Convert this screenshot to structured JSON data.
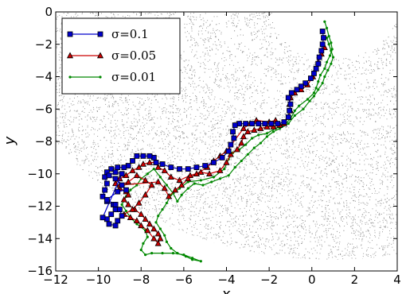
{
  "chart_data": {
    "type": "line",
    "title": "",
    "xlabel": "x",
    "ylabel": "y",
    "xlim": [
      -12,
      4
    ],
    "ylim": [
      -16,
      0
    ],
    "xticks": [
      -12,
      -10,
      -8,
      -6,
      -4,
      -2,
      0,
      2,
      4
    ],
    "yticks": [
      0,
      -2,
      -4,
      -6,
      -8,
      -10,
      -12,
      -14,
      -16
    ],
    "xtick_labels": [
      "−12",
      "−10",
      "−8",
      "−6",
      "−4",
      "−2",
      "0",
      "2",
      "4"
    ],
    "ytick_labels": [
      "0",
      "−2",
      "−4",
      "−6",
      "−8",
      "−10",
      "−12",
      "−14",
      "−16"
    ],
    "grid": false,
    "legend_position": "top-left",
    "background": {
      "description": "dense gray dotted region of a phase-space scatter with nested white arcs centered near (1, 0)",
      "dot_color": "#9a9a9a",
      "arc_center": [
        1,
        0
      ],
      "arc_radii": [
        2.9,
        4.2,
        5.1,
        7.1,
        15.3
      ]
    },
    "series": [
      {
        "name": "σ=0.1",
        "color": "#0000cc",
        "marker": "square",
        "points": [
          [
            0.5,
            -1.2
          ],
          [
            0.55,
            -1.6
          ],
          [
            0.5,
            -2.0
          ],
          [
            0.45,
            -2.4
          ],
          [
            0.35,
            -2.8
          ],
          [
            0.3,
            -3.2
          ],
          [
            0.2,
            -3.5
          ],
          [
            0.1,
            -3.8
          ],
          [
            -0.05,
            -4.1
          ],
          [
            -0.3,
            -4.4
          ],
          [
            -0.5,
            -4.6
          ],
          [
            -0.7,
            -4.8
          ],
          [
            -0.95,
            -5.0
          ],
          [
            -1.1,
            -5.3
          ],
          [
            -1.0,
            -5.7
          ],
          [
            -1.05,
            -6.1
          ],
          [
            -1.1,
            -6.5
          ],
          [
            -1.3,
            -6.8
          ],
          [
            -1.6,
            -6.9
          ],
          [
            -1.9,
            -6.9
          ],
          [
            -2.2,
            -6.9
          ],
          [
            -2.5,
            -6.9
          ],
          [
            -2.8,
            -6.9
          ],
          [
            -3.1,
            -6.9
          ],
          [
            -3.4,
            -6.9
          ],
          [
            -3.6,
            -7.0
          ],
          [
            -3.7,
            -7.4
          ],
          [
            -3.65,
            -7.8
          ],
          [
            -3.8,
            -8.2
          ],
          [
            -3.9,
            -8.6
          ],
          [
            -4.2,
            -9.0
          ],
          [
            -4.6,
            -9.3
          ],
          [
            -5.0,
            -9.5
          ],
          [
            -5.4,
            -9.6
          ],
          [
            -5.8,
            -9.7
          ],
          [
            -6.2,
            -9.7
          ],
          [
            -6.6,
            -9.6
          ],
          [
            -7.0,
            -9.4
          ],
          [
            -7.3,
            -9.3
          ],
          [
            -7.4,
            -9.0
          ],
          [
            -7.6,
            -8.9
          ],
          [
            -7.9,
            -8.9
          ],
          [
            -8.2,
            -8.9
          ],
          [
            -8.4,
            -9.2
          ],
          [
            -8.6,
            -9.5
          ],
          [
            -8.8,
            -9.6
          ],
          [
            -9.1,
            -9.6
          ],
          [
            -9.4,
            -9.7
          ],
          [
            -9.6,
            -9.9
          ],
          [
            -9.7,
            -10.2
          ],
          [
            -9.6,
            -10.6
          ],
          [
            -9.7,
            -11.0
          ],
          [
            -9.8,
            -11.4
          ],
          [
            -9.6,
            -11.7
          ],
          [
            -9.3,
            -11.9
          ],
          [
            -9.2,
            -12.2
          ],
          [
            -9.4,
            -12.5
          ],
          [
            -9.6,
            -12.8
          ],
          [
            -9.5,
            -13.1
          ],
          [
            -9.2,
            -13.2
          ],
          [
            -9.1,
            -12.9
          ],
          [
            -8.9,
            -12.6
          ],
          [
            -9.0,
            -12.2
          ],
          [
            -9.2,
            -11.9
          ],
          [
            -9.6,
            -11.6
          ],
          [
            -9.1,
            -11.1
          ],
          [
            -8.7,
            -11.0
          ],
          [
            -8.9,
            -10.7
          ],
          [
            -9.2,
            -10.3
          ],
          [
            -9.5,
            -10.1
          ],
          [
            -9.2,
            -9.9
          ],
          [
            -8.9,
            -10.0
          ],
          [
            -9.8,
            -12.7
          ]
        ]
      },
      {
        "name": "σ=0.05",
        "color": "#cc0000",
        "marker": "triangle",
        "points": [
          [
            0.6,
            -2.2
          ],
          [
            0.45,
            -2.6
          ],
          [
            0.3,
            -3.1
          ],
          [
            0.2,
            -3.5
          ],
          [
            0.05,
            -4.0
          ],
          [
            -0.2,
            -4.5
          ],
          [
            -0.5,
            -4.8
          ],
          [
            -0.8,
            -5.0
          ],
          [
            -1.0,
            -5.3
          ],
          [
            -1.05,
            -5.7
          ],
          [
            -1.0,
            -6.1
          ],
          [
            -1.1,
            -6.5
          ],
          [
            -1.3,
            -6.9
          ],
          [
            -1.5,
            -7.0
          ],
          [
            -1.8,
            -7.1
          ],
          [
            -2.1,
            -7.1
          ],
          [
            -2.4,
            -7.2
          ],
          [
            -2.7,
            -7.3
          ],
          [
            -3.0,
            -7.4
          ],
          [
            -3.2,
            -7.7
          ],
          [
            -3.3,
            -8.1
          ],
          [
            -3.5,
            -8.5
          ],
          [
            -3.8,
            -8.8
          ],
          [
            -4.0,
            -9.3
          ],
          [
            -4.3,
            -9.8
          ],
          [
            -4.8,
            -10.0
          ],
          [
            -5.2,
            -9.9
          ],
          [
            -5.7,
            -10.1
          ],
          [
            -6.2,
            -10.4
          ],
          [
            -6.6,
            -10.2
          ],
          [
            -6.9,
            -9.8
          ],
          [
            -7.2,
            -9.6
          ],
          [
            -7.3,
            -9.3
          ],
          [
            -7.6,
            -9.3
          ],
          [
            -7.9,
            -9.4
          ],
          [
            -8.1,
            -9.6
          ],
          [
            -8.4,
            -9.8
          ],
          [
            -8.7,
            -10.1
          ],
          [
            -9.0,
            -10.3
          ],
          [
            -9.2,
            -10.6
          ],
          [
            -9.0,
            -10.9
          ],
          [
            -8.7,
            -11.1
          ],
          [
            -8.6,
            -11.3
          ],
          [
            -8.8,
            -11.6
          ],
          [
            -8.6,
            -11.9
          ],
          [
            -8.3,
            -12.2
          ],
          [
            -8.0,
            -12.5
          ],
          [
            -7.8,
            -12.8
          ],
          [
            -7.6,
            -13.1
          ],
          [
            -7.4,
            -13.4
          ],
          [
            -7.2,
            -13.7
          ],
          [
            -7.1,
            -14.0
          ],
          [
            -7.2,
            -14.3
          ],
          [
            -7.4,
            -14.0
          ],
          [
            -7.7,
            -13.5
          ],
          [
            -8.0,
            -13.2
          ],
          [
            -8.2,
            -12.9
          ],
          [
            -8.5,
            -12.7
          ],
          [
            -8.8,
            -12.5
          ],
          [
            -8.4,
            -12.2
          ],
          [
            -8.1,
            -11.8
          ],
          [
            -7.8,
            -11.3
          ],
          [
            -7.5,
            -10.7
          ],
          [
            -7.8,
            -10.4
          ],
          [
            -8.2,
            -10.1
          ],
          [
            -8.6,
            -10.5
          ],
          [
            -9.0,
            -10.7
          ],
          [
            -7.2,
            -10.5
          ],
          [
            -6.9,
            -10.9
          ],
          [
            -6.7,
            -11.4
          ],
          [
            -6.4,
            -11.0
          ],
          [
            -6.1,
            -10.7
          ],
          [
            -5.8,
            -10.3
          ],
          [
            -5.4,
            -10.0
          ],
          [
            -4.9,
            -9.6
          ],
          [
            -4.6,
            -9.2
          ],
          [
            -4.3,
            -8.9
          ],
          [
            -4.0,
            -8.6
          ],
          [
            -3.2,
            -7.2
          ],
          [
            -2.9,
            -6.9
          ],
          [
            -2.6,
            -6.7
          ],
          [
            -2.0,
            -6.8
          ],
          [
            -1.7,
            -6.7
          ]
        ]
      },
      {
        "name": "σ=0.01",
        "color": "#008800",
        "marker": "dot",
        "points": [
          [
            0.6,
            -0.6
          ],
          [
            0.7,
            -1.0
          ],
          [
            0.8,
            -1.5
          ],
          [
            0.9,
            -1.9
          ],
          [
            0.95,
            -2.3
          ],
          [
            0.85,
            -2.7
          ],
          [
            0.7,
            -3.1
          ],
          [
            0.6,
            -3.5
          ],
          [
            0.4,
            -3.9
          ],
          [
            0.3,
            -4.3
          ],
          [
            0.2,
            -4.7
          ],
          [
            0.1,
            -5.0
          ],
          [
            -0.2,
            -5.4
          ],
          [
            -0.6,
            -5.8
          ],
          [
            -0.8,
            -6.1
          ],
          [
            -1.0,
            -6.6
          ],
          [
            -1.3,
            -7.0
          ],
          [
            -1.7,
            -7.2
          ],
          [
            -2.1,
            -7.5
          ],
          [
            -2.5,
            -7.6
          ],
          [
            -2.8,
            -7.8
          ],
          [
            -3.1,
            -8.2
          ],
          [
            -3.4,
            -8.5
          ],
          [
            -3.7,
            -8.7
          ],
          [
            -3.9,
            -9.1
          ],
          [
            -4.1,
            -9.7
          ],
          [
            -4.6,
            -10.2
          ],
          [
            -5.2,
            -10.4
          ],
          [
            -5.8,
            -10.5
          ],
          [
            -6.2,
            -10.9
          ],
          [
            -6.6,
            -11.3
          ],
          [
            -6.8,
            -11.8
          ],
          [
            -7.0,
            -12.2
          ],
          [
            -7.2,
            -12.6
          ],
          [
            -7.3,
            -13.0
          ],
          [
            -7.1,
            -13.4
          ],
          [
            -6.9,
            -13.8
          ],
          [
            -6.8,
            -14.2
          ],
          [
            -6.6,
            -14.6
          ],
          [
            -6.3,
            -14.9
          ],
          [
            -5.9,
            -15.1
          ],
          [
            -5.6,
            -15.3
          ],
          [
            -5.2,
            -15.4
          ],
          [
            -5.6,
            -15.2
          ],
          [
            -6.0,
            -15.0
          ],
          [
            -6.5,
            -14.9
          ],
          [
            -7.0,
            -14.9
          ],
          [
            -7.5,
            -14.9
          ],
          [
            -7.8,
            -15.0
          ],
          [
            -8.0,
            -14.7
          ],
          [
            -7.9,
            -14.3
          ],
          [
            -7.7,
            -13.9
          ],
          [
            -7.8,
            -13.5
          ],
          [
            -8.2,
            -13.1
          ],
          [
            -8.5,
            -12.7
          ],
          [
            -8.7,
            -12.3
          ],
          [
            -8.9,
            -11.9
          ],
          [
            -8.7,
            -11.4
          ],
          [
            -8.5,
            -11.0
          ],
          [
            -8.2,
            -10.7
          ],
          [
            -8.0,
            -10.3
          ],
          [
            -7.7,
            -10.0
          ],
          [
            -7.4,
            -9.7
          ],
          [
            -7.1,
            -10.2
          ],
          [
            -6.8,
            -10.7
          ],
          [
            -6.5,
            -11.2
          ],
          [
            -6.3,
            -11.7
          ],
          [
            -6.1,
            -11.3
          ],
          [
            -5.8,
            -10.9
          ],
          [
            -5.5,
            -10.6
          ],
          [
            -5.1,
            -10.7
          ],
          [
            -4.7,
            -10.5
          ],
          [
            -4.3,
            -10.3
          ],
          [
            -3.9,
            -10.1
          ],
          [
            -3.6,
            -9.6
          ],
          [
            -3.3,
            -9.2
          ],
          [
            -3.0,
            -8.8
          ],
          [
            -2.7,
            -8.4
          ],
          [
            -2.4,
            -8.1
          ],
          [
            -2.1,
            -7.7
          ],
          [
            -1.8,
            -7.4
          ],
          [
            -1.5,
            -7.2
          ],
          [
            -1.1,
            -6.9
          ],
          [
            -0.8,
            -6.4
          ],
          [
            -0.4,
            -6.0
          ],
          [
            -0.1,
            -5.5
          ],
          [
            0.1,
            -5.2
          ],
          [
            0.3,
            -4.8
          ],
          [
            0.5,
            -4.4
          ],
          [
            0.6,
            -4.0
          ],
          [
            0.75,
            -3.6
          ],
          [
            0.9,
            -3.2
          ],
          [
            1.0,
            -2.8
          ],
          [
            0.9,
            -2.4
          ],
          [
            0.8,
            -2.0
          ],
          [
            0.7,
            -1.6
          ]
        ]
      }
    ]
  }
}
